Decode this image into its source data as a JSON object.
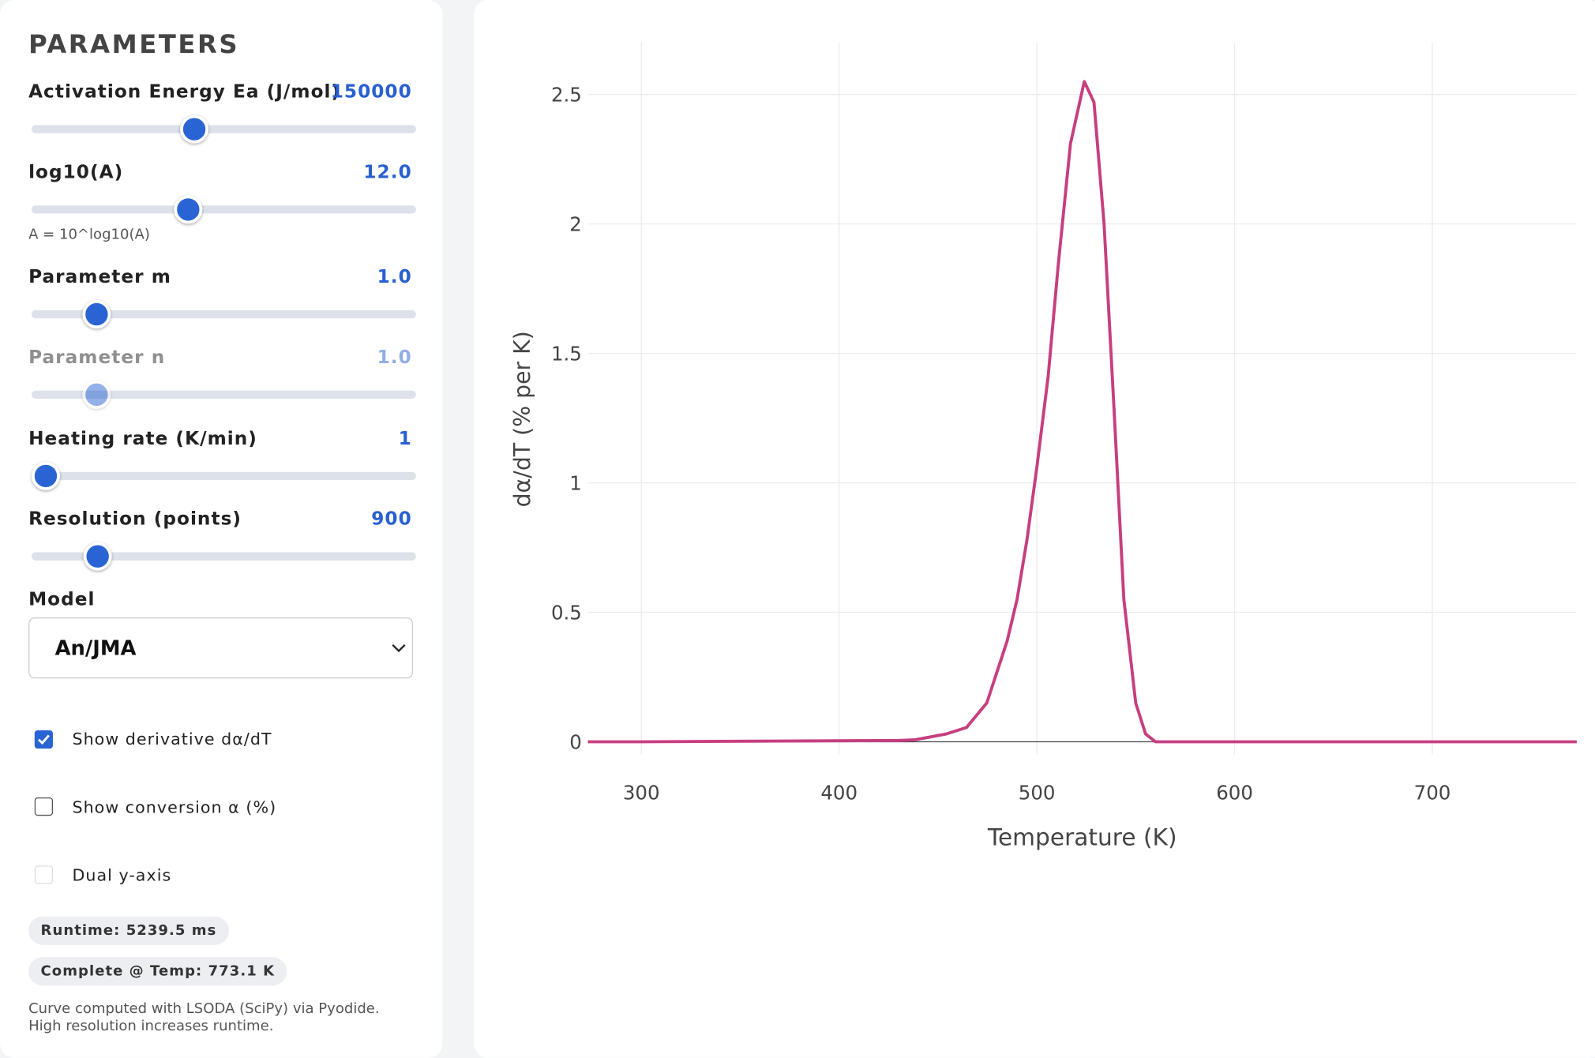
{
  "panel": {
    "title": "PARAMETERS",
    "sliders": [
      {
        "label": "Activation Energy Ea (J/mol)",
        "value": "150000"
      },
      {
        "label": "log10(A)",
        "value": "12.0",
        "hint": "A = 10^log10(A)"
      },
      {
        "label": "Parameter m",
        "value": "1.0"
      },
      {
        "label": "Parameter n",
        "value": "1.0"
      },
      {
        "label": "Heating rate (K/min)",
        "value": "1"
      },
      {
        "label": "Resolution (points)",
        "value": "900"
      }
    ],
    "model_label": "Model",
    "model": "An/JMA",
    "checkboxes": [
      "Show derivative dα/dT",
      "Show conversion α (%)",
      "Dual y-axis"
    ],
    "badges": [
      "Runtime: 5239.5 ms",
      "Complete @ Temp: 773.1 K"
    ],
    "footnote": [
      "Curve computed with LSODA (SciPy) via Pyodide.",
      "High resolution increases runtime."
    ]
  },
  "chart_data": {
    "type": "line",
    "x_label": "Temperature (K)",
    "y_label": "dα/dT (% per K)",
    "x": [
      273,
      300,
      350,
      400,
      430,
      438.6,
      454,
      464.4,
      474.7,
      485,
      490,
      495,
      500,
      505.7,
      510.8,
      517,
      524,
      528.9,
      534,
      539,
      544,
      550,
      555,
      560,
      600,
      700,
      773
    ],
    "values": [
      0,
      0,
      0.002,
      0.004,
      0.005,
      0.008,
      0.03,
      0.055,
      0.15,
      0.39,
      0.55,
      0.78,
      1.06,
      1.41,
      1.84,
      2.31,
      2.55,
      2.47,
      2.0,
      1.29,
      0.55,
      0.15,
      0.03,
      0,
      0,
      0,
      0
    ],
    "color": "#c73e7f",
    "xlim": [
      273,
      773
    ],
    "ylim": [
      -0.05,
      2.7
    ],
    "xticks": [
      300,
      400,
      500,
      600,
      700
    ],
    "yticks": [
      0,
      0.5,
      1,
      1.5,
      2,
      2.5
    ],
    "grid": true
  }
}
